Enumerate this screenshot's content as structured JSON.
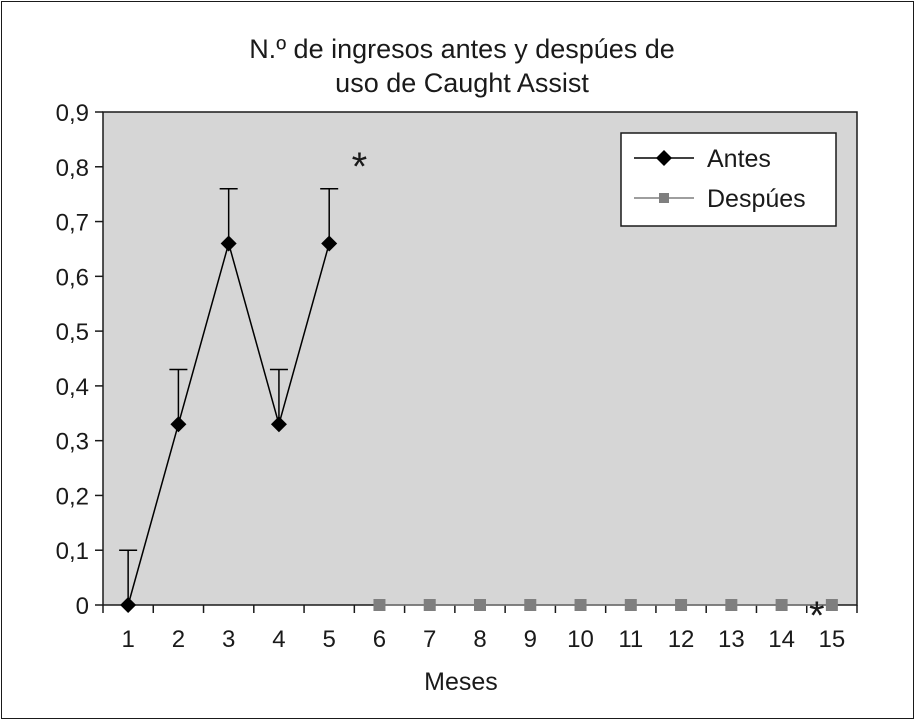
{
  "chart_data": {
    "type": "line",
    "title_lines": [
      "N.º de ingresos antes y despúes de",
      "uso de Caught Assist"
    ],
    "xlabel": "Meses",
    "ylabel": "",
    "x": [
      1,
      2,
      3,
      4,
      5,
      6,
      7,
      8,
      9,
      10,
      11,
      12,
      13,
      14,
      15
    ],
    "xticks": [
      "1",
      "2",
      "3",
      "4",
      "5",
      "6",
      "7",
      "8",
      "9",
      "10",
      "11",
      "12",
      "13",
      "14",
      "15"
    ],
    "ylim": [
      0,
      0.9
    ],
    "yticks": [
      "0",
      "0,1",
      "0,2",
      "0,3",
      "0,4",
      "0,5",
      "0,6",
      "0,7",
      "0,8",
      "0,9"
    ],
    "grid": false,
    "legend_position": "top-right",
    "background_color": "#d6d6d6",
    "series": [
      {
        "name": "Antes",
        "marker": "diamond",
        "color": "#000000",
        "x": [
          1,
          2,
          3,
          4,
          5
        ],
        "values": [
          0.0,
          0.33,
          0.66,
          0.33,
          0.66
        ],
        "error_upper": [
          0.1,
          0.1,
          0.1,
          0.1,
          0.1
        ]
      },
      {
        "name": "Despúes",
        "marker": "square",
        "color": "#7f7f7f",
        "x": [
          6,
          7,
          8,
          9,
          10,
          11,
          12,
          13,
          14,
          15
        ],
        "values": [
          0,
          0,
          0,
          0,
          0,
          0,
          0,
          0,
          0,
          0
        ]
      }
    ],
    "annotations": [
      {
        "text": "*",
        "x": 5.6,
        "y": 0.82
      },
      {
        "text": "*",
        "x": 14.7,
        "y": 0.0
      }
    ]
  }
}
